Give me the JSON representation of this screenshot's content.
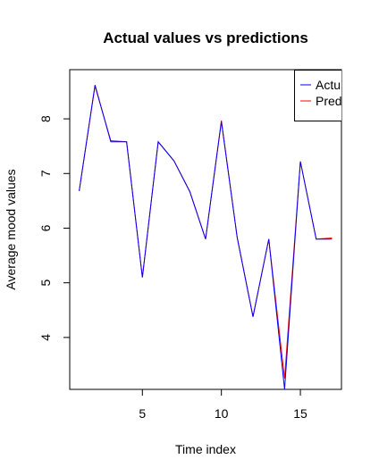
{
  "chart_data": {
    "type": "line",
    "title": "Actual values vs predictions",
    "xlabel": "Time index",
    "ylabel": "Average mood values",
    "xlim": [
      0.4,
      17.6
    ],
    "ylim": [
      3.05,
      8.9
    ],
    "x_ticks": [
      5,
      10,
      15
    ],
    "y_ticks": [
      4,
      5,
      6,
      7,
      8
    ],
    "x": [
      1,
      2,
      3,
      4,
      5,
      6,
      7,
      8,
      9,
      10,
      11,
      12,
      13,
      14,
      15,
      16,
      17
    ],
    "series": [
      {
        "name": "Actual",
        "color": "#0000ff",
        "values": [
          6.68,
          8.62,
          7.58,
          7.58,
          5.1,
          7.58,
          7.23,
          6.67,
          5.8,
          7.95,
          5.83,
          4.38,
          5.8,
          3.05,
          7.22,
          5.8,
          5.8
        ]
      },
      {
        "name": "Predicted",
        "color": "#ff0000",
        "values": [
          6.68,
          8.6,
          7.6,
          7.58,
          5.1,
          7.58,
          7.23,
          6.67,
          5.8,
          7.97,
          5.83,
          4.38,
          5.8,
          3.25,
          7.22,
          5.8,
          5.82
        ]
      }
    ],
    "legend": {
      "placement": "top-right",
      "labels": [
        "Actu",
        "Pred"
      ]
    },
    "grid": false
  }
}
